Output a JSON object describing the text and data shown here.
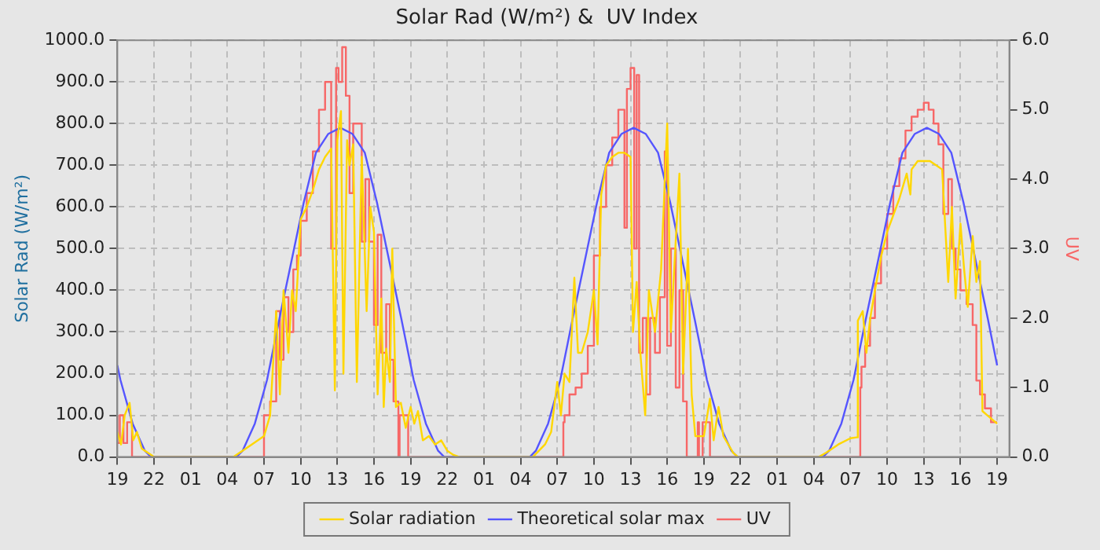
{
  "chart_data": {
    "type": "line",
    "title": "Solar Rad (W/m²) &  UV Index",
    "ylabel": "Solar Rad (W/m²)",
    "y2label": "UV",
    "xlim": [
      "--01-01T19:00",
      "--01-04T20:00"
    ],
    "xticks": [
      {
        "value": "--01-01T19:00",
        "label": "19"
      },
      {
        "value": "--01-01T22:00",
        "label": "22"
      },
      {
        "value": "--01-02T01:00",
        "label": "01"
      },
      {
        "value": "--01-02T04:00",
        "label": "04"
      },
      {
        "value": "--01-02T07:00",
        "label": "07"
      },
      {
        "value": "--01-02T10:00",
        "label": "10"
      },
      {
        "value": "--01-02T13:00",
        "label": "13"
      },
      {
        "value": "--01-02T16:00",
        "label": "16"
      },
      {
        "value": "--01-02T19:00",
        "label": "19"
      },
      {
        "value": "--01-02T22:00",
        "label": "22"
      },
      {
        "value": "--01-03T01:00",
        "label": "01"
      },
      {
        "value": "--01-03T04:00",
        "label": "04"
      },
      {
        "value": "--01-03T07:00",
        "label": "07"
      },
      {
        "value": "--01-03T10:00",
        "label": "10"
      },
      {
        "value": "--01-03T13:00",
        "label": "13"
      },
      {
        "value": "--01-03T16:00",
        "label": "16"
      },
      {
        "value": "--01-03T19:00",
        "label": "19"
      },
      {
        "value": "--01-03T22:00",
        "label": "22"
      },
      {
        "value": "--01-04T01:00",
        "label": "01"
      },
      {
        "value": "--01-04T04:00",
        "label": "04"
      },
      {
        "value": "--01-04T07:00",
        "label": "07"
      },
      {
        "value": "--01-04T10:00",
        "label": "10"
      },
      {
        "value": "--01-04T13:00",
        "label": "13"
      },
      {
        "value": "--01-04T16:00",
        "label": "16"
      },
      {
        "value": "--01-04T19:00",
        "label": "19"
      }
    ],
    "ylim": [
      0,
      1000
    ],
    "yticks": [
      {
        "value": 0,
        "label": "0.0"
      },
      {
        "value": 100,
        "label": "100.0"
      },
      {
        "value": 200,
        "label": "200.0"
      },
      {
        "value": 300,
        "label": "300.0"
      },
      {
        "value": 400,
        "label": "400.0"
      },
      {
        "value": 500,
        "label": "500.0"
      },
      {
        "value": 600,
        "label": "600.0"
      },
      {
        "value": 700,
        "label": "700.0"
      },
      {
        "value": 800,
        "label": "800.0"
      },
      {
        "value": 900,
        "label": "900.0"
      },
      {
        "value": 1000,
        "label": "1000.0"
      }
    ],
    "y2lim": [
      0,
      6
    ],
    "y2ticks": [
      {
        "value": 0,
        "label": "0.0"
      },
      {
        "value": 1,
        "label": "1.0"
      },
      {
        "value": 2,
        "label": "2.0"
      },
      {
        "value": 3,
        "label": "3.0"
      },
      {
        "value": 4,
        "label": "4.0"
      },
      {
        "value": 5,
        "label": "5.0"
      },
      {
        "value": 6,
        "label": "6.0"
      }
    ],
    "grid": true,
    "legend": "bottom",
    "marker": "none",
    "line_style": "solid",
    "series": [
      {
        "name": "Solar radiation",
        "color": "#ffd700",
        "x": [
          "--01-01T19:00",
          "--01-01T19:18",
          "--01-01T19:36",
          "--01-01T20:00",
          "--01-01T20:18",
          "--01-01T20:36",
          "--01-01T21:00",
          "--01-01T21:30",
          "--01-01T22:00",
          "--01-02T04:30",
          "--01-02T05:00",
          "--01-02T06:00",
          "--01-02T07:00",
          "--01-02T07:30",
          "--01-02T08:00",
          "--01-02T08:18",
          "--01-02T08:36",
          "--01-02T09:00",
          "--01-02T09:18",
          "--01-02T09:36",
          "--01-02T10:00",
          "--01-02T10:30",
          "--01-02T11:00",
          "--01-02T11:30",
          "--01-02T12:00",
          "--01-02T12:30",
          "--01-02T12:48",
          "--01-02T13:00",
          "--01-02T13:18",
          "--01-02T13:30",
          "--01-02T13:48",
          "--01-02T14:00",
          "--01-02T14:18",
          "--01-02T14:36",
          "--01-02T15:00",
          "--01-02T15:24",
          "--01-02T15:42",
          "--01-02T16:00",
          "--01-02T16:18",
          "--01-02T16:36",
          "--01-02T16:48",
          "--01-02T17:00",
          "--01-02T17:18",
          "--01-02T17:30",
          "--01-02T17:48",
          "--01-02T18:12",
          "--01-02T18:36",
          "--01-02T19:00",
          "--01-02T19:18",
          "--01-02T19:36",
          "--01-02T20:00",
          "--01-02T20:30",
          "--01-02T21:00",
          "--01-02T21:30",
          "--01-02T22:00",
          "--01-02T22:30",
          "--01-02T23:00",
          "--01-03T05:00",
          "--01-03T06:00",
          "--01-03T06:30",
          "--01-03T07:00",
          "--01-03T07:18",
          "--01-03T07:36",
          "--01-03T08:00",
          "--01-03T08:24",
          "--01-03T08:42",
          "--01-03T09:00",
          "--01-03T09:30",
          "--01-03T10:00",
          "--01-03T10:18",
          "--01-03T10:36",
          "--01-03T11:00",
          "--01-03T11:30",
          "--01-03T12:00",
          "--01-03T12:30",
          "--01-03T13:00",
          "--01-03T13:12",
          "--01-03T13:30",
          "--01-03T13:48",
          "--01-03T14:12",
          "--01-03T14:30",
          "--01-03T15:00",
          "--01-03T15:30",
          "--01-03T16:00",
          "--01-03T16:18",
          "--01-03T16:42",
          "--01-03T17:00",
          "--01-03T17:18",
          "--01-03T17:42",
          "--01-03T18:00",
          "--01-03T18:18",
          "--01-03T18:48",
          "--01-03T19:00",
          "--01-03T19:30",
          "--01-03T19:48",
          "--01-03T20:12",
          "--01-03T20:36",
          "--01-03T21:00",
          "--01-03T21:24",
          "--01-03T21:48",
          "--01-04T04:24",
          "--01-04T05:00",
          "--01-04T06:00",
          "--01-04T07:00",
          "--01-04T07:30",
          "--01-04T07:36",
          "--01-04T08:00",
          "--01-04T08:18",
          "--01-04T08:36",
          "--01-04T09:00",
          "--01-04T09:30",
          "--01-04T10:00",
          "--01-04T10:30",
          "--01-04T11:00",
          "--01-04T11:18",
          "--01-04T11:36",
          "--01-04T11:54",
          "--01-04T12:00",
          "--01-04T12:30",
          "--01-04T13:00",
          "--01-04T13:30",
          "--01-04T14:00",
          "--01-04T14:30",
          "--01-04T15:00",
          "--01-04T15:18",
          "--01-04T15:36",
          "--01-04T16:00",
          "--01-04T16:18",
          "--01-04T16:36",
          "--01-04T17:00",
          "--01-04T17:18",
          "--01-04T17:36",
          "--01-04T17:48",
          "--01-04T18:12",
          "--01-04T18:36",
          "--01-04T19:00"
        ],
        "values": [
          60,
          30,
          100,
          130,
          40,
          60,
          20,
          10,
          0,
          0,
          10,
          30,
          50,
          100,
          350,
          150,
          400,
          250,
          400,
          350,
          570,
          600,
          640,
          690,
          720,
          740,
          160,
          760,
          830,
          200,
          760,
          700,
          750,
          180,
          720,
          350,
          600,
          540,
          150,
          380,
          120,
          260,
          180,
          500,
          120,
          130,
          70,
          120,
          80,
          110,
          40,
          50,
          30,
          40,
          15,
          5,
          0,
          0,
          30,
          60,
          180,
          100,
          200,
          180,
          430,
          250,
          250,
          300,
          400,
          270,
          630,
          700,
          720,
          730,
          730,
          720,
          300,
          420,
          250,
          100,
          400,
          300,
          450,
          800,
          300,
          520,
          680,
          200,
          500,
          150,
          50,
          50,
          50,
          140,
          40,
          120,
          50,
          30,
          10,
          0,
          0,
          10,
          30,
          45,
          47,
          327,
          350,
          250,
          330,
          400,
          480,
          540,
          580,
          620,
          650,
          680,
          630,
          690,
          710,
          710,
          710,
          700,
          690,
          420,
          600,
          380,
          560,
          450,
          360,
          530,
          420,
          470,
          110,
          100,
          90,
          80
        ]
      },
      {
        "name": "Theoretical solar max",
        "color": "#5555ff",
        "x": [
          "--01-01T19:00",
          "--01-01T19:15",
          "--01-01T20:15",
          "--01-01T21:15",
          "--01-01T21:45",
          "--01-02T04:45",
          "--01-02T05:15",
          "--01-02T06:15",
          "--01-02T07:15",
          "--01-02T08:15",
          "--01-02T09:15",
          "--01-02T10:15",
          "--01-02T11:15",
          "--01-02T12:15",
          "--01-02T13:15",
          "--01-02T14:15",
          "--01-02T15:15",
          "--01-02T16:15",
          "--01-02T17:15",
          "--01-02T18:15",
          "--01-02T19:15",
          "--01-02T20:15",
          "--01-02T21:15",
          "--01-02T21:45",
          "--01-03T04:45",
          "--01-03T05:15",
          "--01-03T06:15",
          "--01-03T07:15",
          "--01-03T08:15",
          "--01-03T09:15",
          "--01-03T10:15",
          "--01-03T11:15",
          "--01-03T12:15",
          "--01-03T13:15",
          "--01-03T14:15",
          "--01-03T15:15",
          "--01-03T16:15",
          "--01-03T17:15",
          "--01-03T18:15",
          "--01-03T19:15",
          "--01-03T20:15",
          "--01-03T21:15",
          "--01-03T21:45",
          "--01-04T04:45",
          "--01-04T05:15",
          "--01-04T06:15",
          "--01-04T07:15",
          "--01-04T08:15",
          "--01-04T09:15",
          "--01-04T10:15",
          "--01-04T11:15",
          "--01-04T12:15",
          "--01-04T13:15",
          "--01-04T14:15",
          "--01-04T15:15",
          "--01-04T16:15",
          "--01-04T17:15",
          "--01-04T18:15",
          "--01-04T19:00"
        ],
        "values": [
          220,
          185,
          80,
          15,
          0,
          0,
          15,
          80,
          185,
          330,
          470,
          610,
          730,
          775,
          790,
          775,
          730,
          610,
          470,
          330,
          185,
          80,
          15,
          0,
          0,
          15,
          80,
          185,
          330,
          470,
          610,
          730,
          775,
          790,
          775,
          730,
          610,
          470,
          330,
          185,
          80,
          15,
          0,
          0,
          15,
          80,
          185,
          330,
          470,
          610,
          730,
          775,
          790,
          775,
          730,
          610,
          470,
          330,
          220
        ]
      },
      {
        "name": "UV",
        "color": "#f76767",
        "type": "step",
        "axis": "y2",
        "x": [
          "--01-01T19:00",
          "--01-01T19:12",
          "--01-01T19:30",
          "--01-01T19:48",
          "--01-01T20:12",
          "--01-01T20:30",
          "--01-02T07:00",
          "--01-02T07:06",
          "--01-02T07:30",
          "--01-02T08:00",
          "--01-02T08:18",
          "--01-02T08:36",
          "--01-02T09:00",
          "--01-02T09:24",
          "--01-02T09:42",
          "--01-02T10:00",
          "--01-02T10:30",
          "--01-02T11:00",
          "--01-02T11:30",
          "--01-02T12:00",
          "--01-02T12:30",
          "--01-02T12:54",
          "--01-02T13:06",
          "--01-02T13:24",
          "--01-02T13:42",
          "--01-02T14:00",
          "--01-02T14:18",
          "--01-02T14:36",
          "--01-02T15:00",
          "--01-02T15:18",
          "--01-02T15:36",
          "--01-02T16:00",
          "--01-02T16:18",
          "--01-02T16:36",
          "--01-02T17:00",
          "--01-02T17:18",
          "--01-02T17:36",
          "--01-02T18:00",
          "--01-02T18:06",
          "--01-02T18:24",
          "--01-02T18:48",
          "--01-02T19:00",
          "--01-03T07:30",
          "--01-03T07:36",
          "--01-03T08:00",
          "--01-03T08:30",
          "--01-03T09:00",
          "--01-03T09:30",
          "--01-03T10:00",
          "--01-03T10:30",
          "--01-03T11:00",
          "--01-03T11:30",
          "--01-03T12:00",
          "--01-03T12:30",
          "--01-03T12:42",
          "--01-03T13:00",
          "--01-03T13:18",
          "--01-03T13:30",
          "--01-03T13:42",
          "--01-03T14:00",
          "--01-03T14:18",
          "--01-03T14:36",
          "--01-03T15:00",
          "--01-03T15:24",
          "--01-03T15:48",
          "--01-03T16:00",
          "--01-03T16:18",
          "--01-03T16:42",
          "--01-03T17:00",
          "--01-03T17:18",
          "--01-03T17:36",
          "--01-03T17:42",
          "--01-03T18:30",
          "--01-03T18:36",
          "--01-03T18:54",
          "--01-03T19:30",
          "--01-03T19:42",
          "--01-03T20:00",
          "--01-04T07:48",
          "--01-04T07:54",
          "--01-04T08:12",
          "--01-04T08:36",
          "--01-04T09:00",
          "--01-04T09:30",
          "--01-04T10:00",
          "--01-04T10:30",
          "--01-04T11:00",
          "--01-04T11:30",
          "--01-04T12:00",
          "--01-04T12:30",
          "--01-04T13:00",
          "--01-04T13:24",
          "--01-04T13:48",
          "--01-04T14:12",
          "--01-04T14:36",
          "--01-04T15:00",
          "--01-04T15:18",
          "--01-04T15:36",
          "--01-04T16:00",
          "--01-04T16:30",
          "--01-04T17:00",
          "--01-04T17:18",
          "--01-04T17:36",
          "--01-04T18:00",
          "--01-04T18:30",
          "--01-04T19:00"
        ],
        "values": [
          0.6,
          0.2,
          0.6,
          0.2,
          0.5,
          0,
          0,
          0.6,
          0.6,
          0.8,
          2.1,
          1.4,
          2.3,
          1.8,
          2.7,
          2.9,
          3.4,
          3.8,
          4.4,
          5.0,
          5.4,
          3.0,
          5.6,
          5.4,
          5.9,
          5.2,
          3.8,
          4.8,
          4.8,
          3.1,
          4.0,
          3.1,
          1.9,
          3.2,
          1.5,
          2.2,
          1.4,
          0.8,
          0,
          0.6,
          0.6,
          0,
          0,
          0.5,
          0.6,
          0.9,
          1.0,
          1.2,
          1.6,
          2.9,
          3.6,
          4.2,
          4.6,
          5.0,
          3.3,
          5.3,
          5.6,
          3.0,
          5.5,
          1.5,
          2.0,
          0.9,
          2.0,
          1.5,
          2.3,
          4.4,
          1.6,
          3.0,
          1.0,
          2.4,
          0.8,
          0,
          0,
          0.5,
          0,
          0.5,
          0,
          0,
          0,
          1.0,
          1.3,
          1.6,
          2.0,
          2.5,
          3.0,
          3.5,
          3.9,
          4.3,
          4.7,
          4.9,
          5.0,
          5.1,
          5.0,
          4.8,
          4.5,
          3.5,
          4.0,
          3.0,
          2.7,
          2.4,
          2.2,
          1.9,
          1.1,
          0.9,
          0.7,
          0.5
        ]
      }
    ]
  }
}
